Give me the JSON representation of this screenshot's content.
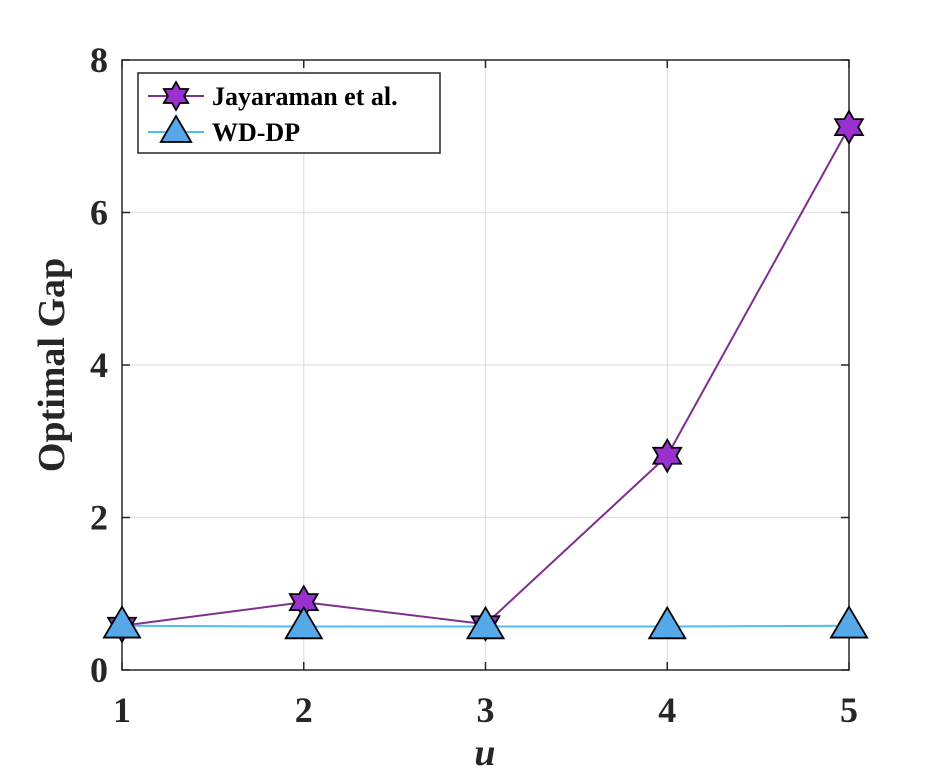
{
  "chart_data": {
    "type": "line",
    "xlabel": "u",
    "ylabel": "Optimal Gap",
    "x": [
      1,
      2,
      3,
      4,
      5
    ],
    "xlim": [
      1,
      5
    ],
    "ylim": [
      0,
      8
    ],
    "xticks": [
      "1",
      "2",
      "3",
      "4",
      "5"
    ],
    "yticks": [
      "0",
      "2",
      "4",
      "6",
      "8"
    ],
    "grid": true,
    "legend_position": "top-left",
    "series": [
      {
        "name": "Jayaraman et al.",
        "values": [
          0.58,
          0.89,
          0.6,
          2.81,
          7.12
        ],
        "color": "#7e2f8e",
        "marker_fill": "#9b30d0",
        "marker": "hexagram"
      },
      {
        "name": "WD-DP",
        "values": [
          0.58,
          0.57,
          0.57,
          0.57,
          0.58
        ],
        "color": "#4dbeee",
        "marker_fill": "#56a8e8",
        "marker": "triangle"
      }
    ]
  }
}
